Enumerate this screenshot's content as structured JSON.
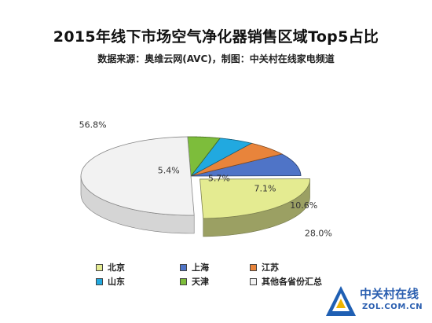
{
  "chart_data": {
    "type": "pie",
    "title": "2015年线下市场空气净化器销售区域Top5占比",
    "subtitle": "数据来源：奥维云网(AVC)，制图：中关村在线家电频道",
    "legend_position": "bottom-left",
    "slices": [
      {
        "name": "北京",
        "value": 28.0,
        "label": "28.0%",
        "color": "#e4eb91"
      },
      {
        "name": "上海",
        "value": 10.6,
        "label": "10.6%",
        "color": "#4f74c7"
      },
      {
        "name": "江苏",
        "value": 7.1,
        "label": "7.1%",
        "color": "#e8843b"
      },
      {
        "name": "山东",
        "value": 5.7,
        "label": "5.7%",
        "color": "#21a9e0"
      },
      {
        "name": "天津",
        "value": 5.4,
        "label": "5.4%",
        "color": "#7dbd3b"
      },
      {
        "name": "其他各省份汇总",
        "value": 56.8,
        "label": "56.8%",
        "color": "#f2f2f2"
      }
    ]
  },
  "watermark": {
    "brand": "中关村在线",
    "url": "ZOL.COM.CN",
    "icon": "zol-logo-icon"
  }
}
